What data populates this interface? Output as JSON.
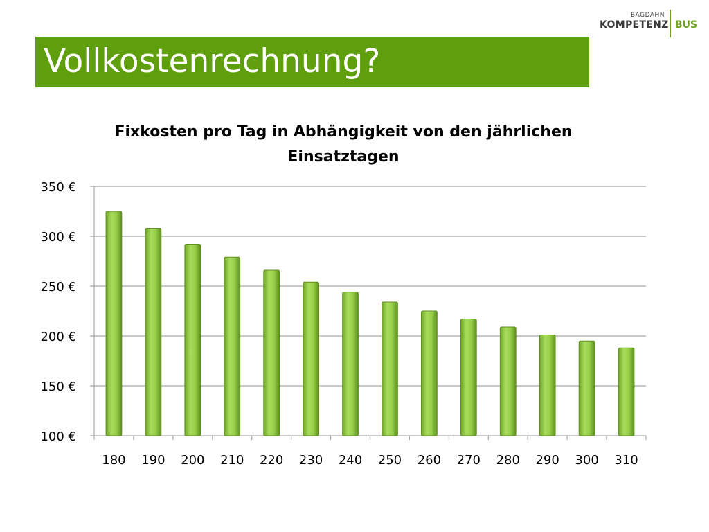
{
  "slide": {
    "title": "Vollkostenrechnung?",
    "logo": {
      "small_text": "BAGDAHN",
      "main_text": "KOMPETENZ",
      "accent_text": "BUS"
    }
  },
  "colors": {
    "title_bar": "#5f9e0c",
    "bar_fill": "#8cc43c",
    "bar_edge": "#5f8f1d",
    "grid": "#a6a6a6",
    "text": "#000000"
  },
  "chart_data": {
    "type": "bar",
    "title": "Fixkosten pro Tag in Abhängigkeit von den jährlichen Einsatztagen",
    "title_lines": [
      "Fixkosten pro Tag in Abhängigkeit von den jährlichen",
      "Einsatztagen"
    ],
    "categories": [
      "180",
      "190",
      "200",
      "210",
      "220",
      "230",
      "240",
      "250",
      "260",
      "270",
      "280",
      "290",
      "300",
      "310"
    ],
    "values": [
      325,
      308,
      292,
      279,
      266,
      254,
      244,
      234,
      225,
      217,
      209,
      201,
      195,
      188
    ],
    "ylim": [
      100,
      350
    ],
    "y_ticks": [
      100,
      150,
      200,
      250,
      300,
      350
    ],
    "y_tick_labels": [
      "100 €",
      "150 €",
      "200 €",
      "250 €",
      "300 €",
      "350 €"
    ],
    "xlabel": "",
    "ylabel": "",
    "grid": true,
    "legend": "none"
  }
}
